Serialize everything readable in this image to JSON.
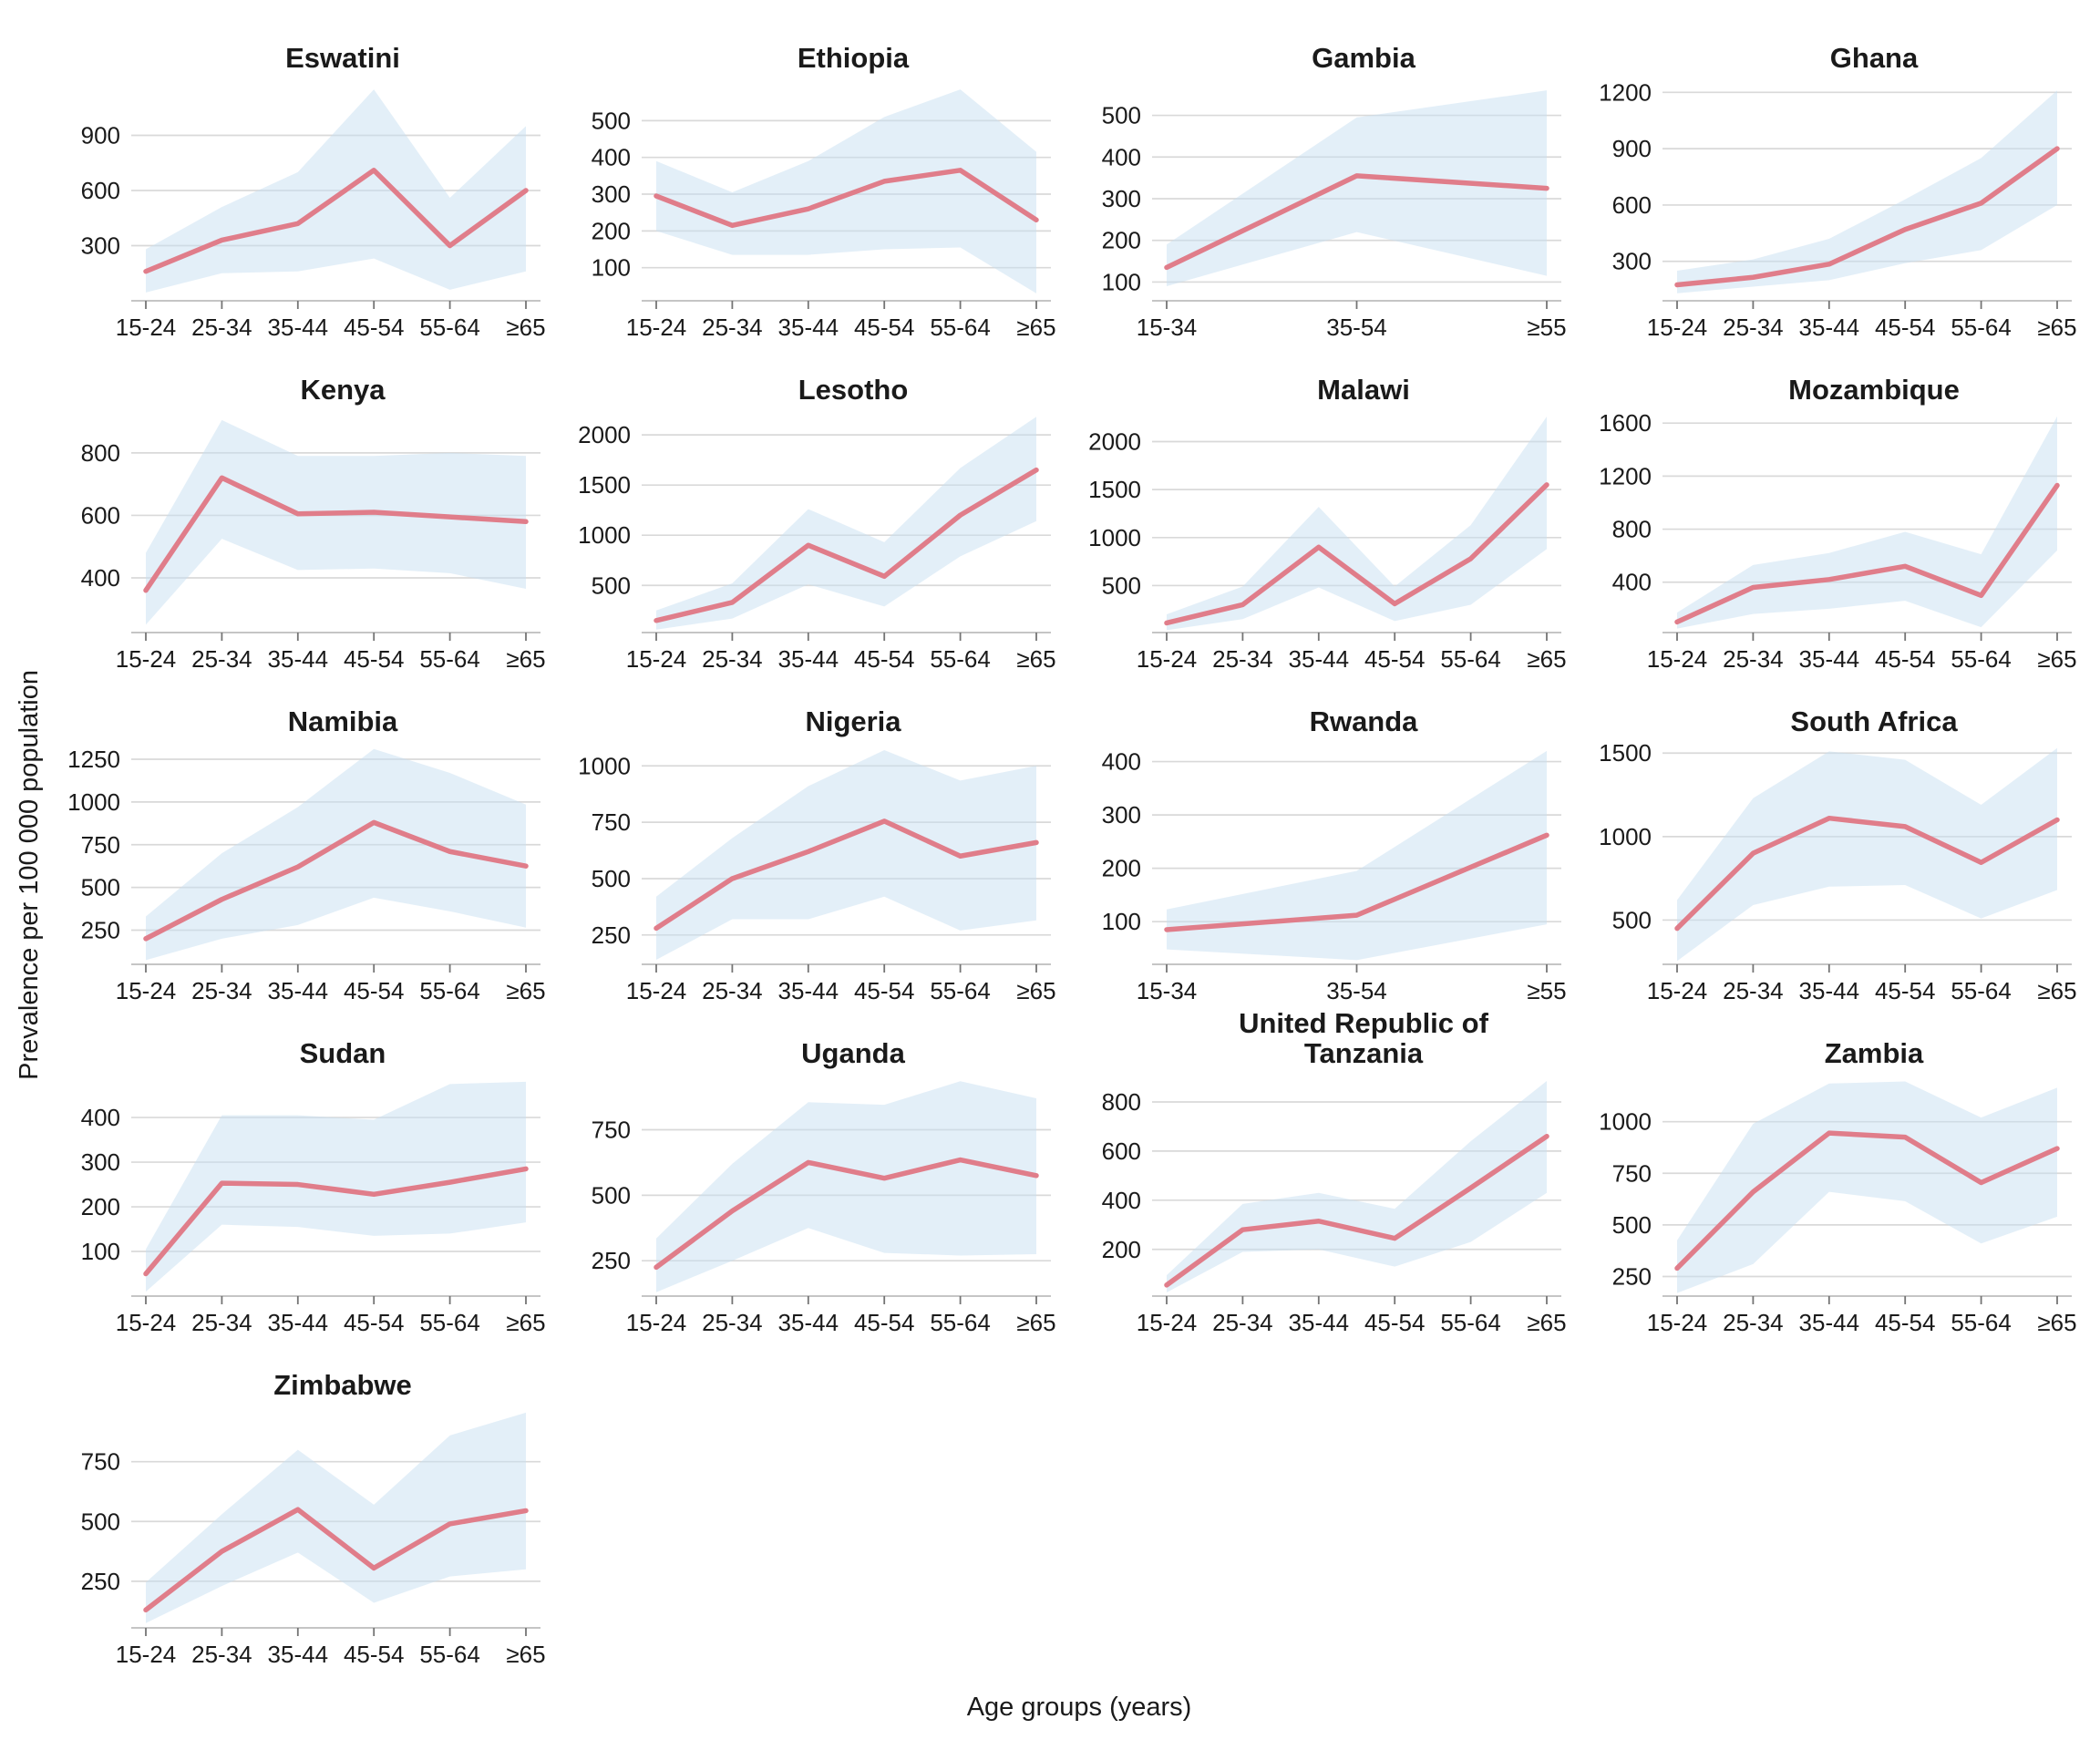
{
  "figure": {
    "ylabel": "Prevalence per 100 000 population",
    "xlabel": "Age groups (years)"
  },
  "style": {
    "line_color": "#E07D8A",
    "band_color": "#C8DFF2",
    "band_opacity": 0.5,
    "grid_color": "#D9D9D9",
    "axis_color": "#BDBDBD",
    "tick_color": "#747474",
    "text_color": "#1A1A1A"
  },
  "chart_data": [
    {
      "type": "line",
      "title": "Eswatini",
      "categories": [
        "15-24",
        "25-34",
        "35-44",
        "45-54",
        "55-64",
        "≥65"
      ],
      "values": [
        160,
        330,
        420,
        710,
        300,
        600
      ],
      "ci_lower": [
        45,
        150,
        160,
        230,
        60,
        160
      ],
      "ci_upper": [
        280,
        510,
        700,
        1150,
        560,
        950
      ],
      "yticks": [
        300,
        600,
        900
      ],
      "ylim": [
        0,
        1190
      ]
    },
    {
      "type": "line",
      "title": "Ethiopia",
      "categories": [
        "15-24",
        "25-34",
        "35-44",
        "45-54",
        "55-64",
        "≥65"
      ],
      "values": [
        295,
        215,
        260,
        335,
        365,
        230
      ],
      "ci_lower": [
        200,
        135,
        135,
        150,
        155,
        30
      ],
      "ci_upper": [
        390,
        305,
        390,
        510,
        585,
        415
      ],
      "yticks": [
        100,
        200,
        300,
        400,
        500
      ],
      "ylim": [
        10,
        605
      ]
    },
    {
      "type": "line",
      "title": "Gambia",
      "categories": [
        "15-34",
        "35-54",
        "≥55"
      ],
      "values": [
        135,
        355,
        325
      ],
      "ci_lower": [
        90,
        220,
        115
      ],
      "ci_upper": [
        190,
        495,
        560
      ],
      "yticks": [
        100,
        200,
        300,
        400,
        500
      ],
      "ylim": [
        55,
        580
      ]
    },
    {
      "type": "line",
      "title": "Ghana",
      "categories": [
        "15-24",
        "25-34",
        "35-44",
        "45-54",
        "55-64",
        "≥65"
      ],
      "values": [
        175,
        215,
        285,
        470,
        610,
        900
      ],
      "ci_lower": [
        130,
        165,
        200,
        290,
        360,
        600
      ],
      "ci_upper": [
        250,
        310,
        420,
        630,
        850,
        1210
      ],
      "yticks": [
        300,
        600,
        900,
        1200
      ],
      "ylim": [
        90,
        1255
      ]
    },
    {
      "type": "line",
      "title": "Kenya",
      "categories": [
        "15-24",
        "25-34",
        "35-44",
        "45-54",
        "55-64",
        "≥65"
      ],
      "values": [
        360,
        720,
        605,
        610,
        595,
        580
      ],
      "ci_lower": [
        250,
        525,
        425,
        430,
        415,
        365
      ],
      "ci_upper": [
        480,
        905,
        790,
        790,
        800,
        790
      ],
      "yticks": [
        400,
        600,
        800
      ],
      "ylim": [
        225,
        925
      ]
    },
    {
      "type": "line",
      "title": "Lesotho",
      "categories": [
        "15-24",
        "25-34",
        "35-44",
        "45-54",
        "55-64",
        "≥65"
      ],
      "values": [
        150,
        330,
        900,
        590,
        1200,
        1650
      ],
      "ci_lower": [
        60,
        170,
        510,
        290,
        790,
        1140
      ],
      "ci_upper": [
        250,
        520,
        1260,
        930,
        1670,
        2180
      ],
      "yticks": [
        500,
        1000,
        1500,
        2000
      ],
      "ylim": [
        30,
        2210
      ]
    },
    {
      "type": "line",
      "title": "Malawi",
      "categories": [
        "15-24",
        "25-34",
        "35-44",
        "45-54",
        "55-64",
        "≥65"
      ],
      "values": [
        110,
        300,
        900,
        310,
        780,
        1550
      ],
      "ci_lower": [
        35,
        150,
        480,
        130,
        300,
        880
      ],
      "ci_upper": [
        200,
        490,
        1320,
        490,
        1130,
        2260
      ],
      "yticks": [
        500,
        1000,
        1500,
        2000
      ],
      "ylim": [
        10,
        2290
      ]
    },
    {
      "type": "line",
      "title": "Mozambique",
      "categories": [
        "15-24",
        "25-34",
        "35-44",
        "45-54",
        "55-64",
        "≥65"
      ],
      "values": [
        100,
        360,
        420,
        520,
        300,
        1130
      ],
      "ci_lower": [
        50,
        160,
        200,
        260,
        60,
        640
      ],
      "ci_upper": [
        170,
        530,
        620,
        780,
        610,
        1650
      ],
      "yticks": [
        400,
        800,
        1200,
        1600
      ],
      "ylim": [
        20,
        1670
      ]
    },
    {
      "type": "line",
      "title": "Namibia",
      "categories": [
        "15-24",
        "25-34",
        "35-44",
        "45-54",
        "55-64",
        "≥65"
      ],
      "values": [
        200,
        430,
        620,
        880,
        710,
        625
      ],
      "ci_lower": [
        75,
        200,
        280,
        440,
        360,
        265
      ],
      "ci_upper": [
        330,
        700,
        970,
        1310,
        1170,
        985
      ],
      "yticks": [
        250,
        500,
        750,
        1000,
        1250
      ],
      "ylim": [
        50,
        1330
      ]
    },
    {
      "type": "line",
      "title": "Nigeria",
      "categories": [
        "15-24",
        "25-34",
        "35-44",
        "45-54",
        "55-64",
        "≥65"
      ],
      "values": [
        280,
        500,
        620,
        755,
        600,
        660
      ],
      "ci_lower": [
        140,
        320,
        320,
        420,
        270,
        315
      ],
      "ci_upper": [
        420,
        680,
        910,
        1070,
        935,
        1000
      ],
      "yticks": [
        250,
        500,
        750,
        1000
      ],
      "ylim": [
        120,
        1090
      ]
    },
    {
      "type": "line",
      "title": "Rwanda",
      "categories": [
        "15-34",
        "35-54",
        "≥55"
      ],
      "values": [
        85,
        112,
        262
      ],
      "ci_lower": [
        48,
        28,
        95
      ],
      "ci_upper": [
        123,
        195,
        420
      ],
      "yticks": [
        100,
        200,
        300,
        400
      ],
      "ylim": [
        20,
        430
      ]
    },
    {
      "type": "line",
      "title": "South Africa",
      "categories": [
        "15-24",
        "25-34",
        "35-44",
        "45-54",
        "55-64",
        "≥65"
      ],
      "values": [
        450,
        900,
        1110,
        1060,
        845,
        1100
      ],
      "ci_lower": [
        255,
        590,
        700,
        710,
        510,
        680
      ],
      "ci_upper": [
        620,
        1230,
        1510,
        1460,
        1190,
        1530
      ],
      "yticks": [
        500,
        1000,
        1500
      ],
      "ylim": [
        235,
        1545
      ]
    },
    {
      "type": "line",
      "title": "Sudan",
      "categories": [
        "15-24",
        "25-34",
        "35-44",
        "45-54",
        "55-64",
        "≥65"
      ],
      "values": [
        50,
        253,
        250,
        228,
        255,
        285
      ],
      "ci_lower": [
        10,
        160,
        155,
        135,
        140,
        165
      ],
      "ci_upper": [
        105,
        405,
        405,
        395,
        475,
        480
      ],
      "yticks": [
        100,
        200,
        300,
        400
      ],
      "ylim": [
        0,
        490
      ]
    },
    {
      "type": "line",
      "title": "Uganda",
      "categories": [
        "15-24",
        "25-34",
        "35-44",
        "45-54",
        "55-64",
        "≥65"
      ],
      "values": [
        225,
        440,
        625,
        565,
        635,
        575
      ],
      "ci_lower": [
        130,
        250,
        375,
        280,
        270,
        275
      ],
      "ci_upper": [
        335,
        620,
        855,
        845,
        935,
        870
      ],
      "yticks": [
        250,
        500,
        750
      ],
      "ylim": [
        115,
        950
      ]
    },
    {
      "type": "line",
      "title": "United Republic of\nTanzania",
      "categories": [
        "15-24",
        "25-34",
        "35-44",
        "45-54",
        "55-64",
        "≥65"
      ],
      "values": [
        55,
        280,
        315,
        245,
        450,
        660
      ],
      "ci_lower": [
        25,
        190,
        200,
        130,
        230,
        430
      ],
      "ci_upper": [
        95,
        385,
        430,
        365,
        640,
        885
      ],
      "yticks": [
        200,
        400,
        600,
        800
      ],
      "ylim": [
        10,
        900
      ]
    },
    {
      "type": "line",
      "title": "Zambia",
      "categories": [
        "15-24",
        "25-34",
        "35-44",
        "45-54",
        "55-64",
        "≥65"
      ],
      "values": [
        290,
        660,
        945,
        925,
        705,
        870
      ],
      "ci_lower": [
        170,
        310,
        660,
        615,
        410,
        540
      ],
      "ci_upper": [
        425,
        990,
        1185,
        1195,
        1020,
        1165
      ],
      "yticks": [
        250,
        500,
        750,
        1000
      ],
      "ylim": [
        155,
        1215
      ]
    },
    {
      "type": "line",
      "title": "Zimbabwe",
      "categories": [
        "15-24",
        "25-34",
        "35-44",
        "45-54",
        "55-64",
        "≥65"
      ],
      "values": [
        130,
        375,
        550,
        305,
        490,
        545
      ],
      "ci_lower": [
        75,
        230,
        370,
        160,
        270,
        300
      ],
      "ci_upper": [
        245,
        530,
        800,
        570,
        860,
        955
      ],
      "yticks": [
        250,
        500,
        750
      ],
      "ylim": [
        55,
        970
      ]
    }
  ]
}
